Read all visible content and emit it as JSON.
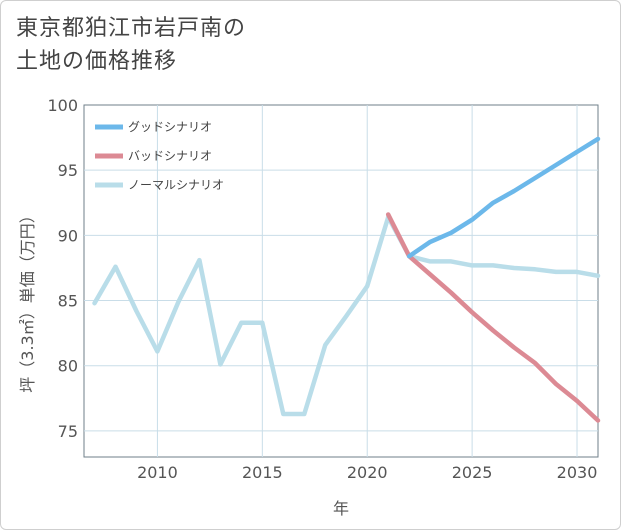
{
  "title_line1": "東京都狛江市岩戸南の",
  "title_line2": "土地の価格推移",
  "chart_data": {
    "type": "line",
    "title": "東京都狛江市岩戸南の土地の価格推移",
    "xlabel": "年",
    "ylabel": "坪（3.3㎡）単価（万円）",
    "xlim": [
      2006.5,
      2031
    ],
    "ylim": [
      73,
      100
    ],
    "xticks": [
      2010,
      2015,
      2020,
      2025,
      2030
    ],
    "yticks": [
      75,
      80,
      85,
      90,
      95,
      100
    ],
    "grid": true,
    "legend_position": "top-left",
    "series": [
      {
        "name": "グッドシナリオ",
        "color": "#6cb8ea",
        "x": [
          2022,
          2023,
          2024,
          2025,
          2026,
          2027,
          2028,
          2029,
          2030,
          2031
        ],
        "values": [
          88.4,
          89.5,
          90.2,
          91.2,
          92.5,
          93.4,
          94.4,
          95.4,
          96.4,
          97.4
        ]
      },
      {
        "name": "バッドシナリオ",
        "color": "#dc8a94",
        "x": [
          2021,
          2022,
          2023,
          2024,
          2025,
          2026,
          2027,
          2028,
          2029,
          2030,
          2031
        ],
        "values": [
          91.6,
          88.4,
          87.0,
          85.6,
          84.1,
          82.7,
          81.4,
          80.2,
          78.6,
          77.3,
          75.8
        ]
      },
      {
        "name": "ノーマルシナリオ",
        "color": "#b9dde9",
        "x": [
          2007,
          2008,
          2009,
          2010,
          2011,
          2012,
          2013,
          2014,
          2015,
          2016,
          2017,
          2018,
          2019,
          2020,
          2021,
          2022,
          2023,
          2024,
          2025,
          2026,
          2027,
          2028,
          2029,
          2030,
          2031
        ],
        "values": [
          84.8,
          87.6,
          84.2,
          81.1,
          84.9,
          88.1,
          80.1,
          83.3,
          83.3,
          76.3,
          76.3,
          81.6,
          83.8,
          86.1,
          91.4,
          88.4,
          88.0,
          88.0,
          87.7,
          87.7,
          87.5,
          87.4,
          87.2,
          87.2,
          86.9
        ]
      }
    ]
  }
}
